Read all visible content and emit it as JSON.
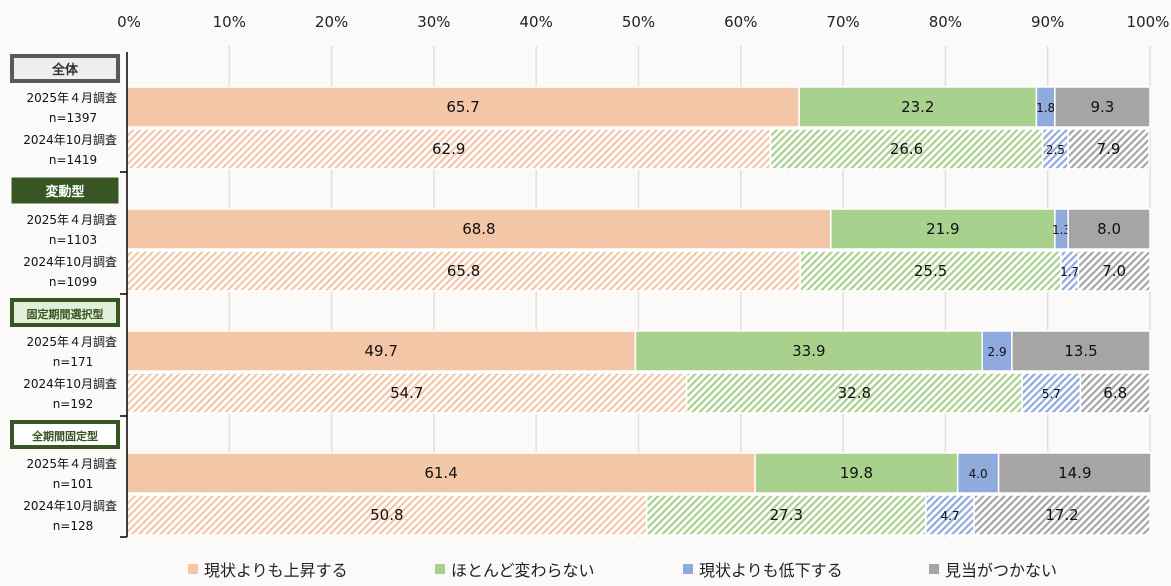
{
  "chart_data": {
    "type": "bar",
    "orientation": "horizontal",
    "stacked": "100%",
    "xlim": [
      0,
      100
    ],
    "x_ticks": [
      "0%",
      "10%",
      "20%",
      "30%",
      "40%",
      "50%",
      "60%",
      "70%",
      "80%",
      "90%",
      "100%"
    ],
    "grid": true,
    "legend_placement": "bottom",
    "series": [
      {
        "name": "現状よりも上昇する",
        "color": "#f4c6a8"
      },
      {
        "name": "ほとんど変わらない",
        "color": "#a9d18e"
      },
      {
        "name": "現状よりも低下する",
        "color": "#8faadc"
      },
      {
        "name": "見当がつかない",
        "color": "#a5a5a5"
      }
    ],
    "groups": [
      {
        "label": "全体",
        "style": "grey",
        "rows": [
          {
            "survey": "2025年４月調査",
            "n": "n=1397",
            "hatched": false,
            "values": [
              65.7,
              23.2,
              1.8,
              9.3
            ]
          },
          {
            "survey": "2024年10月調査",
            "n": "n=1419",
            "hatched": true,
            "values": [
              62.9,
              26.6,
              2.5,
              7.9
            ]
          }
        ]
      },
      {
        "label": "変動型",
        "style": "dark-green",
        "rows": [
          {
            "survey": "2025年４月調査",
            "n": "n=1103",
            "hatched": false,
            "values": [
              68.8,
              21.9,
              1.3,
              8.0
            ]
          },
          {
            "survey": "2024年10月調査",
            "n": "n=1099",
            "hatched": true,
            "values": [
              65.8,
              25.5,
              1.7,
              7.0
            ]
          }
        ]
      },
      {
        "label": "固定期間選択型",
        "style": "light-green",
        "rows": [
          {
            "survey": "2025年４月調査",
            "n": "n=171",
            "hatched": false,
            "values": [
              49.7,
              33.9,
              2.9,
              13.5
            ]
          },
          {
            "survey": "2024年10月調査",
            "n": "n=192",
            "hatched": true,
            "values": [
              54.7,
              32.8,
              5.7,
              6.8
            ]
          }
        ]
      },
      {
        "label": "全期間固定型",
        "style": "white",
        "rows": [
          {
            "survey": "2025年４月調査",
            "n": "n=101",
            "hatched": false,
            "values": [
              61.4,
              19.8,
              4.0,
              14.9
            ]
          },
          {
            "survey": "2024年10月調査",
            "n": "n=128",
            "hatched": true,
            "values": [
              50.8,
              27.3,
              4.7,
              17.2
            ]
          }
        ]
      }
    ]
  }
}
